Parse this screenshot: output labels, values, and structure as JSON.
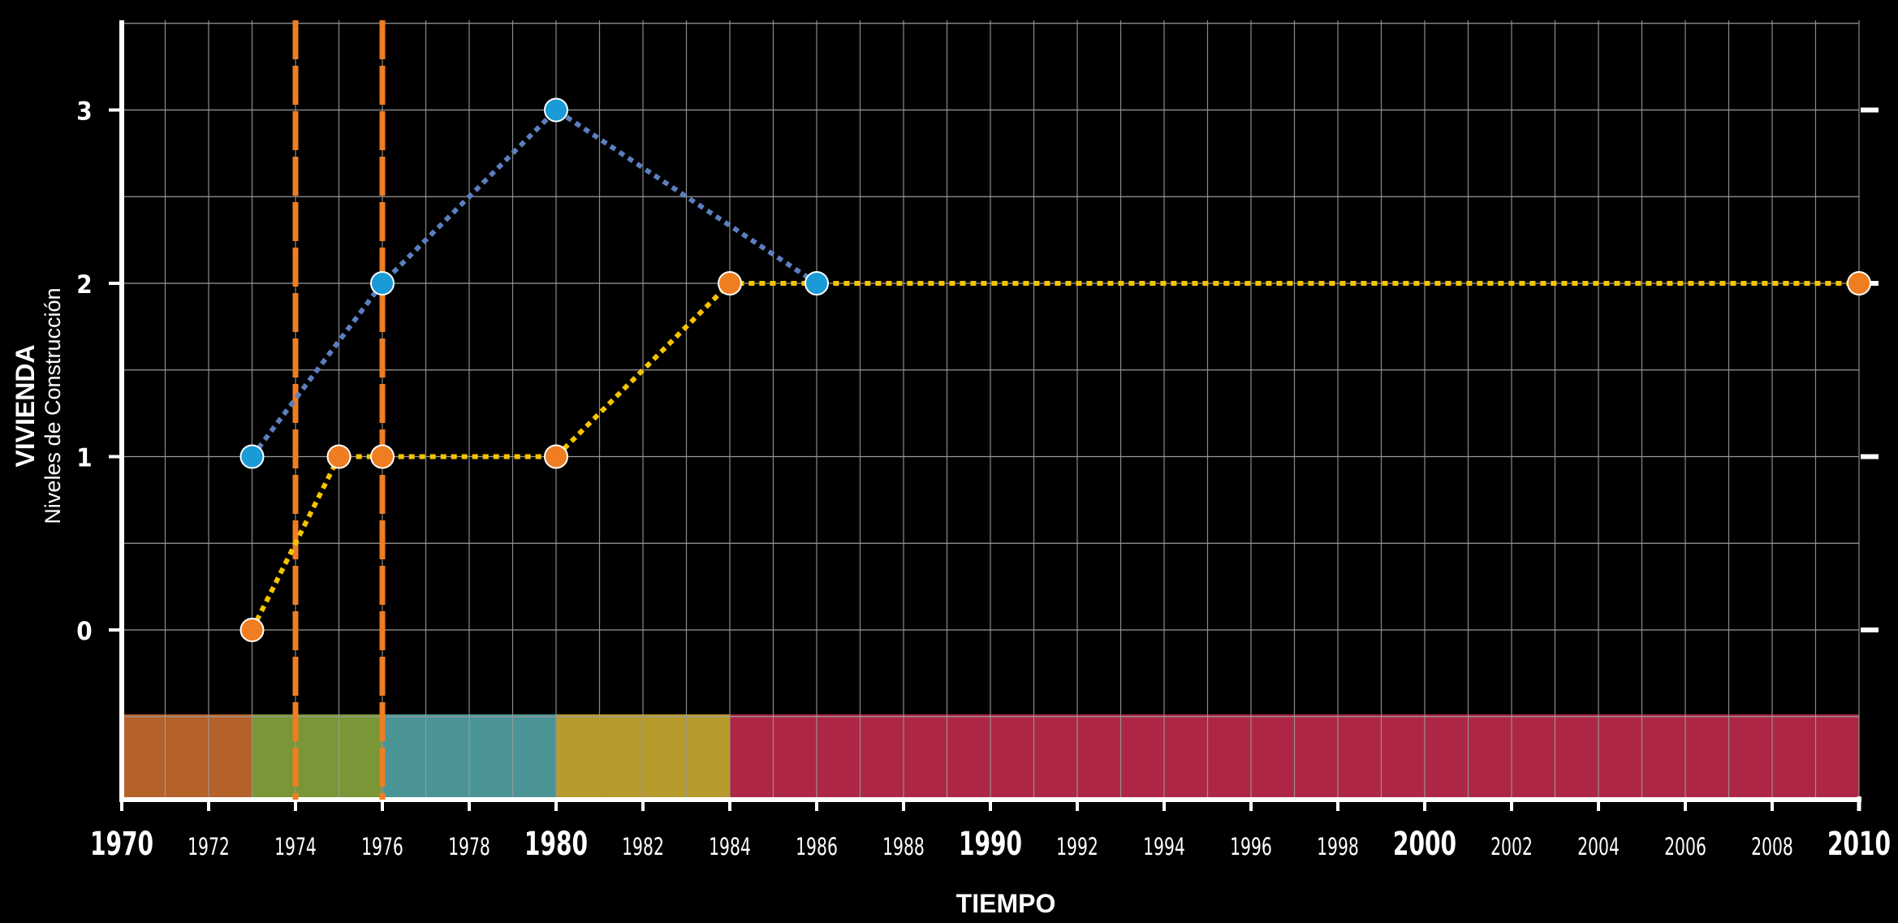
{
  "chart_data": {
    "type": "line",
    "xlabel": "TIEMPO",
    "ylabel": "VIVIENDA",
    "ylabel_sub": "Niveles de Construcción",
    "xlim": [
      1970,
      2010
    ],
    "ylim": [
      -0.5,
      3.5
    ],
    "x_ticks": [
      1970,
      1972,
      1974,
      1976,
      1978,
      1980,
      1982,
      1984,
      1986,
      1988,
      1990,
      1992,
      1994,
      1996,
      1998,
      2000,
      2002,
      2004,
      2006,
      2008,
      2010
    ],
    "x_major_ticks": [
      1970,
      1980,
      1990,
      2000,
      2010
    ],
    "y_ticks": [
      0,
      1,
      2,
      3
    ],
    "grid": true,
    "series": [
      {
        "color": "#5b7fbf",
        "marker_color": "#1a9ad6",
        "style": "dotted",
        "x": [
          1973,
          1976,
          1980,
          1986
        ],
        "y": [
          1,
          2,
          3,
          2
        ]
      },
      {
        "color": "#f5c400",
        "marker_color": "#ef7d22",
        "style": "dotted",
        "x": [
          1973,
          1975,
          1976,
          1980,
          1984,
          2010
        ],
        "y": [
          0,
          1,
          1,
          1,
          2,
          2
        ]
      }
    ],
    "vertical_markers": {
      "color": "#ef7d22",
      "style": "dashed",
      "x": [
        1974,
        1976
      ]
    },
    "period_bands": [
      {
        "start": 1970,
        "end": 1973,
        "color": "#b5612a"
      },
      {
        "start": 1973,
        "end": 1976,
        "color": "#7a9636"
      },
      {
        "start": 1976,
        "end": 1980,
        "color": "#4a9496"
      },
      {
        "start": 1980,
        "end": 1984,
        "color": "#b69a2c"
      },
      {
        "start": 1984,
        "end": 2010,
        "color": "#ad2744"
      }
    ],
    "colors": {
      "background": "#000000",
      "grid": "#9a9a9a",
      "axis": "#ffffff",
      "text": "#ffffff"
    }
  }
}
